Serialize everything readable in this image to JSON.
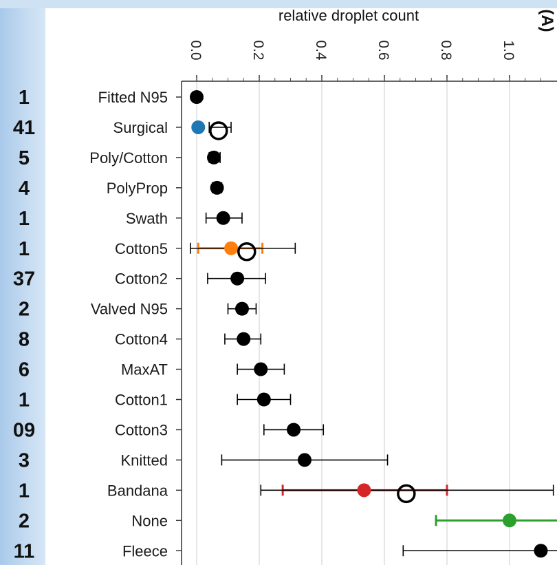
{
  "chart_data": {
    "type": "scatter",
    "orientation": "horizontal-dot-plot-with-error-bars",
    "xlabel": "relative droplet count",
    "panel_label": "(A)",
    "xlim": [
      -0.03,
      1.2
    ],
    "x_ticks": [
      0.0,
      0.2,
      0.4,
      0.6,
      0.8,
      1.0
    ],
    "x_tick_labels": [
      "0.0",
      "0.2",
      "0.4",
      "0.6",
      "0.8",
      "1.0"
    ],
    "x_tick_rotation": "rotated 90 degrees",
    "grid": true,
    "categories": [
      "Fitted N95",
      "Surgical",
      "Poly/Cotton",
      "PolyProp",
      "Swath",
      "Cotton5",
      "Cotton2",
      "Valved N95",
      "Cotton4",
      "MaxAT",
      "Cotton1",
      "Cotton3",
      "Knitted",
      "Bandana",
      "None",
      "Fleece"
    ],
    "side_numbers": [
      "1",
      "41",
      "5",
      "4",
      "1",
      "1",
      "37",
      "2",
      "8",
      "6",
      "1",
      "09",
      "3",
      "1",
      "2",
      "11"
    ],
    "points": [
      {
        "category": "Fitted N95",
        "value": 0.0,
        "err_low": null,
        "err_high": null,
        "style": "filled",
        "color": "#000000"
      },
      {
        "category": "Surgical",
        "value": 0.005,
        "err_low": null,
        "err_high": null,
        "style": "filled",
        "color": "#1f77b4"
      },
      {
        "category": "Surgical",
        "value": 0.07,
        "err_low": 0.04,
        "err_high": 0.11,
        "style": "open",
        "color": "#000000"
      },
      {
        "category": "Poly/Cotton",
        "value": 0.055,
        "err_low": 0.04,
        "err_high": 0.075,
        "style": "filled",
        "color": "#000000"
      },
      {
        "category": "PolyProp",
        "value": 0.065,
        "err_low": 0.05,
        "err_high": 0.08,
        "style": "filled",
        "color": "#000000"
      },
      {
        "category": "Swath",
        "value": 0.085,
        "err_low": 0.03,
        "err_high": 0.145,
        "style": "filled",
        "color": "#000000"
      },
      {
        "category": "Cotton5",
        "value": 0.11,
        "err_low": 0.005,
        "err_high": 0.21,
        "style": "filled",
        "color": "#ff7f0e"
      },
      {
        "category": "Cotton5",
        "value": 0.16,
        "err_low": -0.02,
        "err_high": 0.315,
        "style": "open",
        "color": "#000000"
      },
      {
        "category": "Cotton2",
        "value": 0.13,
        "err_low": 0.035,
        "err_high": 0.22,
        "style": "filled",
        "color": "#000000"
      },
      {
        "category": "Valved N95",
        "value": 0.145,
        "err_low": 0.1,
        "err_high": 0.19,
        "style": "filled",
        "color": "#000000"
      },
      {
        "category": "Cotton4",
        "value": 0.15,
        "err_low": 0.09,
        "err_high": 0.205,
        "style": "filled",
        "color": "#000000"
      },
      {
        "category": "MaxAT",
        "value": 0.205,
        "err_low": 0.13,
        "err_high": 0.28,
        "style": "filled",
        "color": "#000000"
      },
      {
        "category": "Cotton1",
        "value": 0.215,
        "err_low": 0.13,
        "err_high": 0.3,
        "style": "filled",
        "color": "#000000"
      },
      {
        "category": "Cotton3",
        "value": 0.31,
        "err_low": 0.215,
        "err_high": 0.405,
        "style": "filled",
        "color": "#000000"
      },
      {
        "category": "Knitted",
        "value": 0.345,
        "err_low": 0.08,
        "err_high": 0.61,
        "style": "filled",
        "color": "#000000"
      },
      {
        "category": "Bandana",
        "value": 0.535,
        "err_low": 0.275,
        "err_high": 0.8,
        "style": "filled",
        "color": "#d62728"
      },
      {
        "category": "Bandana",
        "value": 0.67,
        "err_low": 0.205,
        "err_high": 1.14,
        "style": "open",
        "color": "#000000"
      },
      {
        "category": "None",
        "value": 1.0,
        "err_low": 0.765,
        "err_high": 1.25,
        "style": "filled",
        "color": "#2ca02c"
      },
      {
        "category": "Fleece",
        "value": 1.1,
        "err_low": 0.66,
        "err_high": 1.4,
        "style": "filled",
        "color": "#000000"
      }
    ]
  }
}
